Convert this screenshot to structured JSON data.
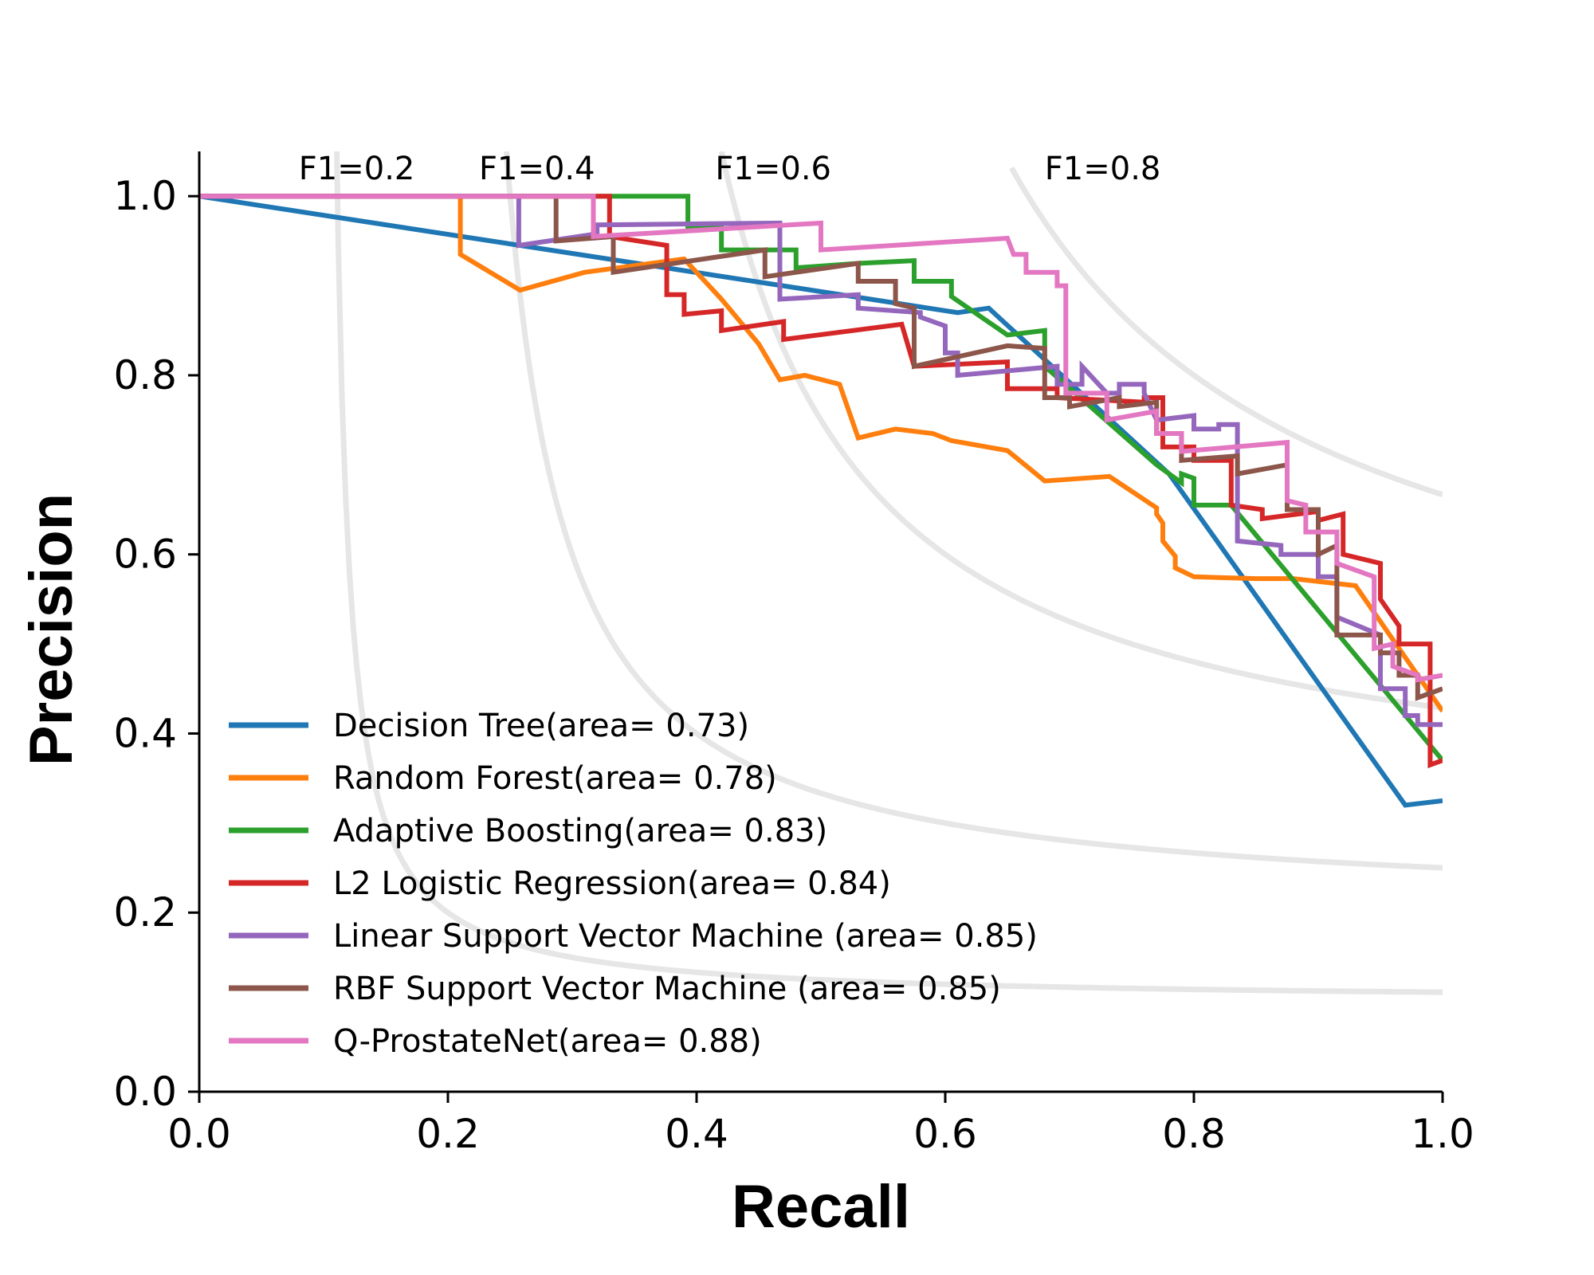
{
  "chart_data": {
    "type": "line",
    "xlabel": "Recall",
    "ylabel": "Precision",
    "xlim": [
      0,
      1
    ],
    "ylim": [
      0,
      1.05
    ],
    "xticks": [
      "0.0",
      "0.2",
      "0.4",
      "0.6",
      "0.8",
      "1.0"
    ],
    "yticks": [
      "0.0",
      "0.2",
      "0.4",
      "0.6",
      "0.8",
      "1.0"
    ],
    "grid": false,
    "legend_position": "lower-left",
    "iso_f1": [
      {
        "f": 0.2,
        "label": "F1=0.2",
        "label_x": 0.08
      },
      {
        "f": 0.4,
        "label": "F1=0.4",
        "label_x": 0.225
      },
      {
        "f": 0.6,
        "label": "F1=0.6",
        "label_x": 0.415
      },
      {
        "f": 0.8,
        "label": "F1=0.8",
        "label_x": 0.68
      }
    ],
    "series": [
      {
        "name": "Decision Tree(area= 0.73)",
        "color": "#1f77b4",
        "points": [
          [
            0,
            1.0
          ],
          [
            0.61,
            0.87
          ],
          [
            0.635,
            0.875
          ],
          [
            0.78,
            0.69
          ],
          [
            0.97,
            0.32
          ],
          [
            1.0,
            0.325
          ]
        ]
      },
      {
        "name": "Random Forest(area= 0.78)",
        "color": "#ff7f0e",
        "points": [
          [
            0,
            1.0
          ],
          [
            0.21,
            1.0
          ],
          [
            0.21,
            0.935
          ],
          [
            0.258,
            0.895
          ],
          [
            0.31,
            0.915
          ],
          [
            0.39,
            0.93
          ],
          [
            0.42,
            0.885
          ],
          [
            0.45,
            0.835
          ],
          [
            0.467,
            0.795
          ],
          [
            0.487,
            0.8
          ],
          [
            0.515,
            0.79
          ],
          [
            0.53,
            0.73
          ],
          [
            0.56,
            0.74
          ],
          [
            0.59,
            0.735
          ],
          [
            0.605,
            0.727
          ],
          [
            0.65,
            0.716
          ],
          [
            0.68,
            0.682
          ],
          [
            0.732,
            0.687
          ],
          [
            0.77,
            0.652
          ],
          [
            0.77,
            0.645
          ],
          [
            0.775,
            0.635
          ],
          [
            0.775,
            0.615
          ],
          [
            0.785,
            0.598
          ],
          [
            0.785,
            0.585
          ],
          [
            0.8,
            0.575
          ],
          [
            0.85,
            0.573
          ],
          [
            0.88,
            0.573
          ],
          [
            0.93,
            0.565
          ],
          [
            1.0,
            0.425
          ]
        ]
      },
      {
        "name": "Adaptive Boosting(area= 0.83)",
        "color": "#2ca02c",
        "points": [
          [
            0,
            1.0
          ],
          [
            0.393,
            1.0
          ],
          [
            0.393,
            0.965
          ],
          [
            0.42,
            0.965
          ],
          [
            0.42,
            0.94
          ],
          [
            0.48,
            0.94
          ],
          [
            0.48,
            0.92
          ],
          [
            0.53,
            0.925
          ],
          [
            0.575,
            0.928
          ],
          [
            0.575,
            0.905
          ],
          [
            0.605,
            0.905
          ],
          [
            0.605,
            0.888
          ],
          [
            0.65,
            0.845
          ],
          [
            0.68,
            0.85
          ],
          [
            0.68,
            0.81
          ],
          [
            0.77,
            0.7
          ],
          [
            0.79,
            0.68
          ],
          [
            0.79,
            0.69
          ],
          [
            0.8,
            0.685
          ],
          [
            0.8,
            0.655
          ],
          [
            0.83,
            0.655
          ],
          [
            1.0,
            0.37
          ]
        ]
      },
      {
        "name": "L2 Logistic Regression(area= 0.84)",
        "color": "#d62728",
        "points": [
          [
            0,
            1.0
          ],
          [
            0.33,
            1.0
          ],
          [
            0.33,
            0.955
          ],
          [
            0.376,
            0.945
          ],
          [
            0.376,
            0.89
          ],
          [
            0.39,
            0.89
          ],
          [
            0.39,
            0.868
          ],
          [
            0.42,
            0.872
          ],
          [
            0.42,
            0.85
          ],
          [
            0.47,
            0.86
          ],
          [
            0.47,
            0.84
          ],
          [
            0.565,
            0.857
          ],
          [
            0.575,
            0.81
          ],
          [
            0.65,
            0.815
          ],
          [
            0.65,
            0.785
          ],
          [
            0.69,
            0.785
          ],
          [
            0.69,
            0.775
          ],
          [
            0.76,
            0.77
          ],
          [
            0.76,
            0.775
          ],
          [
            0.775,
            0.775
          ],
          [
            0.775,
            0.72
          ],
          [
            0.8,
            0.72
          ],
          [
            0.8,
            0.705
          ],
          [
            0.83,
            0.705
          ],
          [
            0.83,
            0.655
          ],
          [
            0.855,
            0.65
          ],
          [
            0.855,
            0.64
          ],
          [
            0.9,
            0.648
          ],
          [
            0.9,
            0.638
          ],
          [
            0.92,
            0.645
          ],
          [
            0.92,
            0.6
          ],
          [
            0.95,
            0.59
          ],
          [
            0.95,
            0.55
          ],
          [
            0.965,
            0.52
          ],
          [
            0.965,
            0.5
          ],
          [
            0.99,
            0.5
          ],
          [
            0.99,
            0.365
          ],
          [
            1.0,
            0.37
          ]
        ]
      },
      {
        "name": "Linear Support Vector Machine (area= 0.85)",
        "color": "#9467bd",
        "points": [
          [
            0,
            1.0
          ],
          [
            0.257,
            1.0
          ],
          [
            0.257,
            0.945
          ],
          [
            0.32,
            0.958
          ],
          [
            0.32,
            0.968
          ],
          [
            0.467,
            0.97
          ],
          [
            0.467,
            0.885
          ],
          [
            0.53,
            0.89
          ],
          [
            0.53,
            0.875
          ],
          [
            0.58,
            0.87
          ],
          [
            0.58,
            0.865
          ],
          [
            0.6,
            0.855
          ],
          [
            0.6,
            0.825
          ],
          [
            0.61,
            0.825
          ],
          [
            0.61,
            0.8
          ],
          [
            0.69,
            0.81
          ],
          [
            0.69,
            0.79
          ],
          [
            0.71,
            0.79
          ],
          [
            0.71,
            0.81
          ],
          [
            0.73,
            0.78
          ],
          [
            0.74,
            0.78
          ],
          [
            0.74,
            0.79
          ],
          [
            0.76,
            0.79
          ],
          [
            0.76,
            0.78
          ],
          [
            0.77,
            0.75
          ],
          [
            0.8,
            0.755
          ],
          [
            0.8,
            0.74
          ],
          [
            0.82,
            0.74
          ],
          [
            0.82,
            0.745
          ],
          [
            0.835,
            0.745
          ],
          [
            0.835,
            0.615
          ],
          [
            0.87,
            0.61
          ],
          [
            0.87,
            0.6
          ],
          [
            0.9,
            0.6
          ],
          [
            0.9,
            0.575
          ],
          [
            0.915,
            0.575
          ],
          [
            0.915,
            0.53
          ],
          [
            0.95,
            0.51
          ],
          [
            0.95,
            0.45
          ],
          [
            0.97,
            0.45
          ],
          [
            0.97,
            0.42
          ],
          [
            0.98,
            0.42
          ],
          [
            0.98,
            0.41
          ],
          [
            1.0,
            0.41
          ]
        ]
      },
      {
        "name": "RBF Support Vector Machine (area= 0.85)",
        "color": "#8c564b",
        "points": [
          [
            0,
            1.0
          ],
          [
            0.287,
            1.0
          ],
          [
            0.287,
            0.95
          ],
          [
            0.333,
            0.955
          ],
          [
            0.333,
            0.915
          ],
          [
            0.455,
            0.94
          ],
          [
            0.455,
            0.91
          ],
          [
            0.53,
            0.925
          ],
          [
            0.53,
            0.905
          ],
          [
            0.56,
            0.905
          ],
          [
            0.56,
            0.88
          ],
          [
            0.575,
            0.875
          ],
          [
            0.575,
            0.81
          ],
          [
            0.65,
            0.833
          ],
          [
            0.68,
            0.83
          ],
          [
            0.68,
            0.775
          ],
          [
            0.7,
            0.775
          ],
          [
            0.7,
            0.765
          ],
          [
            0.74,
            0.775
          ],
          [
            0.74,
            0.765
          ],
          [
            0.77,
            0.77
          ],
          [
            0.77,
            0.735
          ],
          [
            0.79,
            0.735
          ],
          [
            0.79,
            0.705
          ],
          [
            0.835,
            0.71
          ],
          [
            0.835,
            0.69
          ],
          [
            0.875,
            0.7
          ],
          [
            0.875,
            0.65
          ],
          [
            0.9,
            0.65
          ],
          [
            0.9,
            0.6
          ],
          [
            0.915,
            0.61
          ],
          [
            0.915,
            0.51
          ],
          [
            0.95,
            0.51
          ],
          [
            0.95,
            0.49
          ],
          [
            0.965,
            0.49
          ],
          [
            0.965,
            0.465
          ],
          [
            0.98,
            0.465
          ],
          [
            0.98,
            0.44
          ],
          [
            1.0,
            0.45
          ]
        ]
      },
      {
        "name": "Q-ProstateNet(area= 0.88)",
        "color": "#e377c2",
        "points": [
          [
            0,
            1.0
          ],
          [
            0.317,
            1.0
          ],
          [
            0.317,
            0.955
          ],
          [
            0.5,
            0.97
          ],
          [
            0.5,
            0.94
          ],
          [
            0.65,
            0.953
          ],
          [
            0.655,
            0.935
          ],
          [
            0.665,
            0.935
          ],
          [
            0.665,
            0.915
          ],
          [
            0.69,
            0.915
          ],
          [
            0.69,
            0.9
          ],
          [
            0.697,
            0.9
          ],
          [
            0.697,
            0.78
          ],
          [
            0.73,
            0.78
          ],
          [
            0.73,
            0.75
          ],
          [
            0.77,
            0.76
          ],
          [
            0.77,
            0.735
          ],
          [
            0.79,
            0.735
          ],
          [
            0.79,
            0.715
          ],
          [
            0.875,
            0.725
          ],
          [
            0.875,
            0.66
          ],
          [
            0.89,
            0.655
          ],
          [
            0.89,
            0.625
          ],
          [
            0.915,
            0.625
          ],
          [
            0.915,
            0.59
          ],
          [
            0.945,
            0.575
          ],
          [
            0.945,
            0.495
          ],
          [
            0.96,
            0.5
          ],
          [
            0.96,
            0.475
          ],
          [
            0.98,
            0.465
          ],
          [
            0.98,
            0.46
          ],
          [
            1.0,
            0.465
          ]
        ]
      }
    ]
  }
}
